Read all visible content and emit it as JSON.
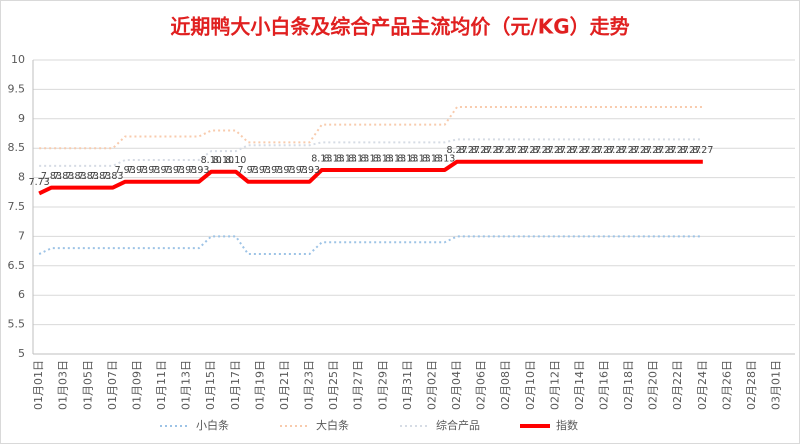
{
  "chart_data": {
    "type": "line",
    "title": "近期鸭大小白条及综合产品主流均价（元/KG）走势",
    "categories": [
      "01月01日",
      null,
      "01月03日",
      null,
      "01月05日",
      null,
      "01月07日",
      null,
      "01月09日",
      null,
      "01月11日",
      null,
      "01月13日",
      null,
      "01月15日",
      null,
      "01月17日",
      null,
      "01月19日",
      null,
      "01月21日",
      null,
      "01月23日",
      null,
      "01月25日",
      null,
      "01月27日",
      null,
      "01月29日",
      null,
      "01月31日",
      null,
      "02月02日",
      null,
      "02月04日",
      null,
      "02月06日",
      null,
      "02月08日",
      null,
      "02月10日",
      null,
      "02月12日",
      null,
      "02月14日",
      null,
      "02月16日",
      null,
      "02月18日",
      null,
      "02月20日",
      null,
      "02月22日",
      null,
      "02月24日",
      null,
      "02月26日",
      null,
      "02月28日",
      null,
      "03月01日",
      null
    ],
    "series": [
      {
        "name": "小白条",
        "color": "#9dc3e6",
        "style": "dotted",
        "values": [
          6.7,
          6.8,
          6.8,
          6.8,
          6.8,
          6.8,
          6.8,
          6.8,
          6.8,
          6.8,
          6.8,
          6.8,
          6.8,
          6.8,
          7,
          7,
          7,
          6.7,
          6.7,
          6.7,
          6.7,
          6.7,
          6.7,
          6.9,
          6.9,
          6.9,
          6.9,
          6.9,
          6.9,
          6.9,
          6.9,
          6.9,
          6.9,
          6.9,
          7,
          7,
          7,
          7,
          7,
          7,
          7,
          7,
          7,
          7,
          7,
          7,
          7,
          7,
          7,
          7,
          7,
          7,
          7,
          7,
          7,
          null,
          null,
          null,
          null,
          null,
          null,
          null
        ]
      },
      {
        "name": "大白条",
        "color": "#f8cbad",
        "style": "dotted",
        "values": [
          8.5,
          8.5,
          8.5,
          8.5,
          8.5,
          8.5,
          8.5,
          8.7,
          8.7,
          8.7,
          8.7,
          8.7,
          8.7,
          8.7,
          8.8,
          8.8,
          8.8,
          8.6,
          8.6,
          8.6,
          8.6,
          8.6,
          8.6,
          8.9,
          8.9,
          8.9,
          8.9,
          8.9,
          8.9,
          8.9,
          8.9,
          8.9,
          8.9,
          8.9,
          9.2,
          9.2,
          9.2,
          9.2,
          9.2,
          9.2,
          9.2,
          9.2,
          9.2,
          9.2,
          9.2,
          9.2,
          9.2,
          9.2,
          9.2,
          9.2,
          9.2,
          9.2,
          9.2,
          9.2,
          9.2,
          null,
          null,
          null,
          null,
          null,
          null,
          null
        ]
      },
      {
        "name": "综合产品",
        "color": "#d6dce5",
        "style": "dotted",
        "values": [
          8.2,
          8.2,
          8.2,
          8.2,
          8.2,
          8.2,
          8.2,
          8.3,
          8.3,
          8.3,
          8.3,
          8.3,
          8.3,
          8.3,
          8.45,
          8.45,
          8.45,
          8.55,
          8.55,
          8.55,
          8.55,
          8.55,
          8.55,
          8.6,
          8.6,
          8.6,
          8.6,
          8.6,
          8.6,
          8.6,
          8.6,
          8.6,
          8.6,
          8.6,
          8.65,
          8.65,
          8.65,
          8.65,
          8.65,
          8.65,
          8.65,
          8.65,
          8.65,
          8.65,
          8.65,
          8.65,
          8.65,
          8.65,
          8.65,
          8.65,
          8.65,
          8.65,
          8.65,
          8.65,
          8.65,
          null,
          null,
          null,
          null,
          null,
          null,
          null
        ]
      },
      {
        "name": "指数",
        "color": "#ff0000",
        "style": "solid",
        "values": [
          7.73,
          7.83,
          7.83,
          7.83,
          7.83,
          7.83,
          7.83,
          7.93,
          7.93,
          7.93,
          7.93,
          7.93,
          7.93,
          7.93,
          8.1,
          8.1,
          8.1,
          7.93,
          7.93,
          7.93,
          7.93,
          7.93,
          7.93,
          8.13,
          8.13,
          8.13,
          8.13,
          8.13,
          8.13,
          8.13,
          8.13,
          8.13,
          8.13,
          8.13,
          8.27,
          8.27,
          8.27,
          8.27,
          8.27,
          8.27,
          8.27,
          8.27,
          8.27,
          8.27,
          8.27,
          8.27,
          8.27,
          8.27,
          8.27,
          8.27,
          8.27,
          8.27,
          8.27,
          8.27,
          8.27,
          null,
          null,
          null,
          null,
          null,
          null,
          null
        ],
        "value_labels": [
          "7.73",
          "7.83",
          "7.83",
          "7.83",
          "7.83",
          "7.83",
          "7.83",
          "7.93",
          "7.93",
          "7.93",
          "7.93",
          "7.93",
          "7.93",
          "7.93",
          "8.10",
          "8.10",
          "8.10",
          "7.93",
          "7.93",
          "7.93",
          "7.93",
          "7.93",
          "7.93",
          "8.13",
          "8.13",
          "8.13",
          "8.13",
          "8.13",
          "8.13",
          "8.13",
          "8.13",
          "8.13",
          "8.13",
          "8.13",
          "8.27",
          "8.27",
          "8.27",
          "8.27",
          "8.27",
          "8.27",
          "8.27",
          "8.27",
          "8.27",
          "8.27",
          "8.27",
          "8.27",
          "8.27",
          "8.27",
          "8.27",
          "8.27",
          "8.27",
          "8.27",
          "8.27",
          "8.27",
          "8.27",
          null,
          null,
          null,
          null,
          null,
          null,
          null
        ]
      }
    ],
    "ylim": [
      5,
      10
    ],
    "yticks": [
      5,
      5.5,
      6,
      6.5,
      7,
      7.5,
      8,
      8.5,
      9,
      9.5,
      10
    ],
    "grid": true,
    "legend": "bottom"
  }
}
